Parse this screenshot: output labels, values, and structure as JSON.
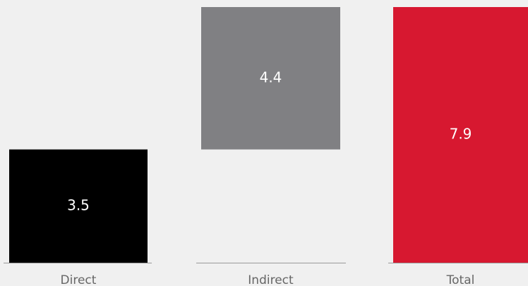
{
  "chart_data": {
    "type": "waterfall",
    "categories": [
      "Direct",
      "Indirect",
      "Total"
    ],
    "values": [
      3.5,
      4.4,
      7.9
    ],
    "measure": [
      "relative",
      "relative",
      "total"
    ],
    "colors": [
      "#000000",
      "#808083",
      "#d71830"
    ]
  }
}
